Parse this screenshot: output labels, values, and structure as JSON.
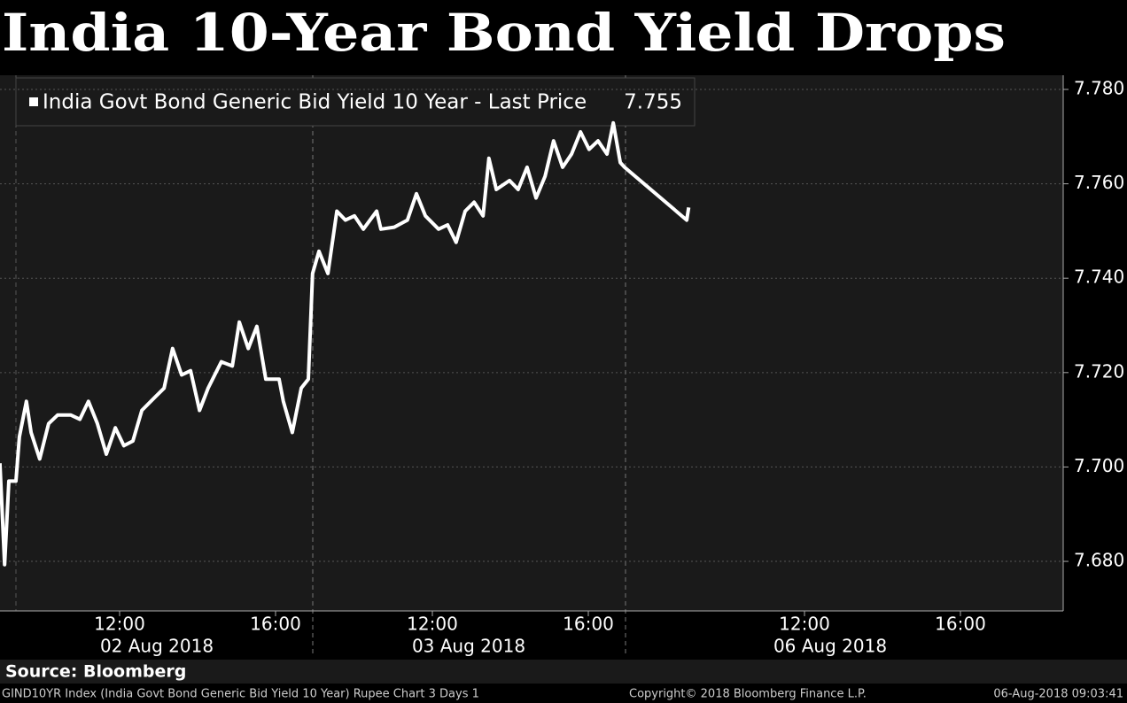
{
  "chart_data": {
    "type": "line",
    "title": "India 10-Year Bond Yield Drops",
    "x": [
      8.93,
      9.05,
      9.16,
      9.34,
      9.43,
      9.61,
      9.73,
      9.95,
      10.18,
      10.41,
      10.75,
      10.98,
      11.2,
      11.43,
      11.66,
      11.89,
      12.11,
      12.34,
      12.57,
      12.91,
      13.14,
      13.36,
      13.59,
      13.82,
      14.05,
      14.27,
      14.61,
      14.89,
      15.07,
      15.3,
      15.52,
      15.75,
      16.09,
      16.2,
      16.43,
      16.66,
      16.84,
      16.95,
      33.09,
      33.32,
      33.55,
      33.77,
      34.0,
      34.23,
      34.57,
      34.68,
      35.02,
      35.36,
      35.59,
      35.82,
      36.16,
      36.39,
      36.61,
      36.84,
      37.07,
      37.3,
      37.45,
      37.64,
      37.98,
      38.2,
      38.43,
      38.66,
      38.89,
      39.11,
      39.34,
      39.57,
      39.8,
      40.02,
      40.25,
      40.48,
      40.64,
      40.82,
      40.93,
      104.98,
      105.03
    ],
    "series": [
      {
        "name": "India Govt Bond Generic Bid Yield 10 Year - Last Price",
        "color": "#ffffff",
        "values": [
          7.7008,
          7.6793,
          7.697,
          7.697,
          7.7064,
          7.7139,
          7.7073,
          7.7017,
          7.7092,
          7.711,
          7.711,
          7.7101,
          7.7139,
          7.7092,
          7.7027,
          7.7083,
          7.7045,
          7.7055,
          7.712,
          7.7148,
          7.7167,
          7.7251,
          7.7195,
          7.7204,
          7.712,
          7.7167,
          7.7223,
          7.7214,
          7.7307,
          7.7251,
          7.7298,
          7.7186,
          7.7186,
          7.7139,
          7.7073,
          7.7167,
          7.7186,
          7.741,
          7.7457,
          7.741,
          7.7542,
          7.7523,
          7.7532,
          7.7504,
          7.7542,
          7.7504,
          7.7508,
          7.7523,
          7.7579,
          7.7532,
          7.7504,
          7.7513,
          7.7476,
          7.7542,
          7.7561,
          7.7532,
          7.7654,
          7.7588,
          7.7607,
          7.7588,
          7.7635,
          7.757,
          7.7616,
          7.7691,
          7.7635,
          7.7663,
          7.771,
          7.7673,
          7.7691,
          7.7663,
          7.7729,
          7.7645,
          7.7635,
          7.7523,
          7.755
        ]
      }
    ],
    "last_price": 7.755,
    "ylim": [
      7.6695,
      7.783
    ],
    "yticks": [
      {
        "value": 7.68,
        "label": "7.680"
      },
      {
        "value": 7.7,
        "label": "7.700"
      },
      {
        "value": 7.72,
        "label": "7.720"
      },
      {
        "value": 7.74,
        "label": "7.740"
      },
      {
        "value": 7.76,
        "label": "7.760"
      },
      {
        "value": 7.78,
        "label": "7.780"
      }
    ],
    "xticks": [
      {
        "value": 12,
        "label": "12:00"
      },
      {
        "value": 16,
        "label": "16:00"
      },
      {
        "value": 36,
        "label": "12:00"
      },
      {
        "value": 40,
        "label": "16:00"
      },
      {
        "value": 108,
        "label": "12:00"
      },
      {
        "value": 112,
        "label": "16:00"
      }
    ],
    "days": [
      {
        "value": 0,
        "label": "02 Aug 2018"
      },
      {
        "value": 24,
        "label": "03 Aug 2018"
      },
      {
        "value": 96,
        "label": "06 Aug 2018"
      }
    ],
    "grid": true,
    "source": "Source: Bloomberg",
    "footer_left": "GIND10YR Index (India Govt Bond Generic Bid Yield 10 Year) Rupee Chart 3 Days 1",
    "footer_center": "Copyright© 2018 Bloomberg Finance L.P.",
    "footer_right": "06-Aug-2018 09:03:41"
  }
}
